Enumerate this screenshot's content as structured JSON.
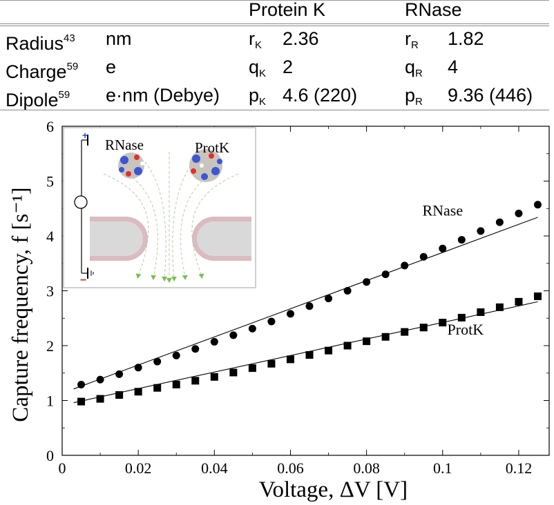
{
  "table": {
    "headers": {
      "col_k": "Protein K",
      "col_r": "RNase"
    },
    "rows": [
      {
        "label": "Radius",
        "ref": "43",
        "unit": "nm",
        "k_sym": "r",
        "k_sub": "K",
        "k_val": "2.36",
        "r_sym": "r",
        "r_sub": "R",
        "r_val": "1.82"
      },
      {
        "label": "Charge",
        "ref": "59",
        "unit": "e",
        "k_sym": "q",
        "k_sub": "K",
        "k_val": "2",
        "r_sym": "q",
        "r_sub": "R",
        "r_val": "4"
      },
      {
        "label": "Dipole",
        "ref": "59",
        "unit": "e·nm (Debye)",
        "k_sym": "p",
        "k_sub": "K",
        "k_val": "4.6 (220)",
        "r_sym": "p",
        "r_sub": "R",
        "r_val": "9.36 (446)"
      }
    ]
  },
  "inset": {
    "label_rnase": "RNase",
    "label_protk": "ProtK",
    "plus": "+",
    "minus": "−"
  },
  "chart_data": {
    "type": "scatter",
    "xlabel": "Voltage,  ΔV [V]",
    "ylabel": "Capture  frequency,  f [s⁻¹]",
    "xlim": [
      0,
      0.128
    ],
    "ylim": [
      0,
      6
    ],
    "xticks": [
      "0",
      "0.02",
      "0.04",
      "0.06",
      "0.08",
      "0.1",
      "0.12"
    ],
    "yticks": [
      "0",
      "1",
      "2",
      "3",
      "4",
      "5",
      "6"
    ],
    "grid": false,
    "series": [
      {
        "name": "RNase",
        "marker": "circle",
        "x": [
          0.005,
          0.01,
          0.015,
          0.02,
          0.025,
          0.03,
          0.035,
          0.04,
          0.045,
          0.05,
          0.055,
          0.06,
          0.065,
          0.07,
          0.075,
          0.08,
          0.085,
          0.09,
          0.095,
          0.1,
          0.105,
          0.11,
          0.115,
          0.12,
          0.125
        ],
        "y": [
          1.29,
          1.38,
          1.48,
          1.6,
          1.71,
          1.82,
          1.94,
          2.07,
          2.19,
          2.31,
          2.44,
          2.58,
          2.72,
          2.86,
          3.0,
          3.16,
          3.3,
          3.46,
          3.62,
          3.77,
          3.93,
          4.09,
          4.25,
          4.41,
          4.57
        ],
        "fit": {
          "x": [
            0.003,
            0.125
          ],
          "y": [
            1.21,
            4.34
          ]
        }
      },
      {
        "name": "ProtK",
        "marker": "square",
        "x": [
          0.005,
          0.01,
          0.015,
          0.02,
          0.025,
          0.03,
          0.035,
          0.04,
          0.045,
          0.05,
          0.055,
          0.06,
          0.065,
          0.07,
          0.075,
          0.08,
          0.085,
          0.09,
          0.095,
          0.1,
          0.105,
          0.11,
          0.115,
          0.12,
          0.125
        ],
        "y": [
          0.98,
          1.03,
          1.1,
          1.16,
          1.23,
          1.29,
          1.36,
          1.43,
          1.51,
          1.59,
          1.67,
          1.75,
          1.83,
          1.91,
          2.0,
          2.08,
          2.16,
          2.25,
          2.33,
          2.42,
          2.51,
          2.61,
          2.7,
          2.8,
          2.9
        ],
        "fit": {
          "x": [
            0.003,
            0.125
          ],
          "y": [
            0.96,
            2.8
          ]
        }
      }
    ],
    "annotations": [
      {
        "text": "RNase",
        "series": 0
      },
      {
        "text": "ProtK",
        "series": 1
      }
    ]
  }
}
